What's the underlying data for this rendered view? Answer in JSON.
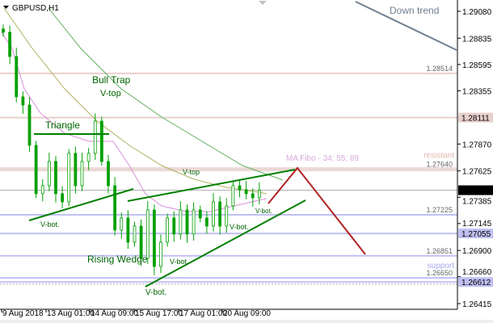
{
  "header": {
    "symbol_label": "GBPUSD,H1"
  },
  "chart_data": {
    "type": "candlestick",
    "title": "GBPUSD,H1",
    "ylim": [
      1.26415,
      1.2908
    ],
    "y_ticks": [
      "1.29080",
      "1.28835",
      "1.28595",
      "1.28355",
      "1.27870",
      "1.27625",
      "1.27385",
      "1.27145",
      "1.26900",
      "1.26660",
      "1.26415"
    ],
    "x_ticks": [
      "9 Aug 2018",
      "13 Aug 01:00",
      "14 Aug 09:00",
      "15 Aug 17:00",
      "17 Aug 01:00",
      "20 Aug 09:00"
    ],
    "closes": [
      1.28889,
      1.28668,
      1.283,
      1.28226,
      1.27858,
      1.27417,
      1.2749,
      1.27711,
      1.27417,
      1.27343,
      1.27785,
      1.2749,
      1.27711,
      1.27785,
      1.28079,
      1.27711,
      1.2749,
      1.27086,
      1.27196,
      1.26975,
      1.27122,
      1.26828,
      1.27269,
      1.26754,
      1.26975,
      1.27196,
      1.27049,
      1.27269,
      1.27049,
      1.27269,
      1.27196,
      1.27122,
      1.27343,
      1.27122,
      1.27306,
      1.2749,
      1.27454,
      1.27417,
      1.2738,
      1.27449
    ],
    "current_price": {
      "value": "1.27449",
      "color": "#000000"
    },
    "levels": [
      {
        "value": "1.28514",
        "color": "#e8d0cc",
        "axis_badge": false
      },
      {
        "value": "1.28111",
        "color": "#e8d0cc",
        "axis_badge": true
      },
      {
        "value": "1.27640",
        "color": "#ecd8d4",
        "label": "resistant",
        "axis_badge": false
      },
      {
        "value": "1.27225",
        "color": "#c0c0f4",
        "axis_badge": false
      },
      {
        "value": "1.27055",
        "color": "#c0c0f4",
        "axis_badge": true
      },
      {
        "value": "1.26851",
        "color": "#c0c0f4",
        "axis_badge": false
      },
      {
        "value": "1.26650",
        "color": "#c0c0f4",
        "label": "support",
        "axis_badge": false
      },
      {
        "value": "1.26612",
        "color": "#c0c0f4",
        "axis_badge": true
      }
    ],
    "annotations": {
      "down_trend": "Down trend",
      "bull_trap": "Bull Trap",
      "v_top_1": "V-top",
      "triangle": "Triangle",
      "v_bot_1": "V-bot.",
      "ma_fibo": "MA Fibo - 34; 55; 89",
      "v_top_2": "V-top",
      "v_bot_2": "V-bot.",
      "rising_wedge": "Rising Wedge",
      "v_bot_3": "V-bot.",
      "v_bot_4": "V-bot.",
      "v_bot_5": "V-bot."
    },
    "colors": {
      "bull": "#00aa00",
      "bear": "#00aa00",
      "trendline": "#008000",
      "projection": "#b22222",
      "ma34": "#d070d0",
      "ma55": "#a0a040",
      "ma89": "#40a040",
      "downtrend": "#708090"
    },
    "grid": false
  }
}
